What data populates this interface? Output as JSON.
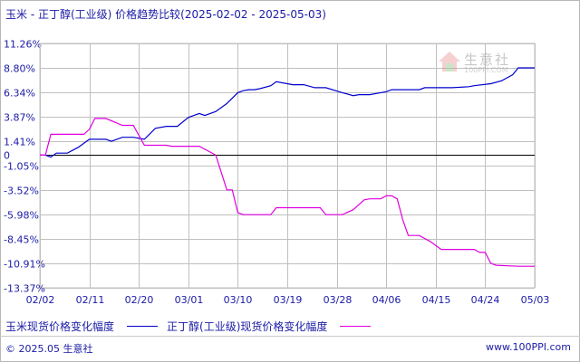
{
  "title": "玉米 - 正丁醇(工业级) 价格趋势比较(2025-02-02 - 2025-05-03)",
  "watermark": {
    "name": "生意社",
    "url": "100PPI.COM",
    "icon": "house-logo-icon"
  },
  "footer": {
    "left": "© 2025.05 生意社",
    "right": "www.100PPI.com"
  },
  "colors": {
    "series_1": "#0000cc",
    "series_2": "#e000e0",
    "grid": "#c0c0c0",
    "axis_text": "#1a1aa6"
  },
  "chart_data": {
    "type": "line",
    "x_ticks": [
      "02/02",
      "02/11",
      "02/20",
      "03/01",
      "03/10",
      "03/19",
      "03/28",
      "04/06",
      "04/15",
      "04/24",
      "05/03"
    ],
    "y_ticks": [
      "11.26%",
      "8.80%",
      "6.34%",
      "3.87%",
      "1.41%",
      "0",
      "-1.05%",
      "-3.52%",
      "-5.98%",
      "-8.45%",
      "-10.91%",
      "-13.37%"
    ],
    "y_tick_values": [
      11.26,
      8.8,
      6.34,
      3.87,
      1.41,
      0,
      -1.05,
      -3.52,
      -5.98,
      -8.45,
      -10.91,
      -13.37
    ],
    "ylim": [
      -13.37,
      11.26
    ],
    "x_range": [
      "2025-02-02",
      "2025-05-03"
    ],
    "grid": true,
    "legend_position": "bottom",
    "series": [
      {
        "name": "玉米现货价格变化幅度",
        "x": [
          "2025-02-02",
          "2025-02-03",
          "2025-02-04",
          "2025-02-05",
          "2025-02-07",
          "2025-02-09",
          "2025-02-11",
          "2025-02-14",
          "2025-02-15",
          "2025-02-17",
          "2025-02-19",
          "2025-02-21",
          "2025-02-23",
          "2025-02-25",
          "2025-02-27",
          "2025-03-01",
          "2025-03-03",
          "2025-03-04",
          "2025-03-06",
          "2025-03-08",
          "2025-03-10",
          "2025-03-11",
          "2025-03-12",
          "2025-03-13",
          "2025-03-14",
          "2025-03-16",
          "2025-03-17",
          "2025-03-19",
          "2025-03-20",
          "2025-03-22",
          "2025-03-24",
          "2025-03-26",
          "2025-03-29",
          "2025-03-31",
          "2025-04-01",
          "2025-04-02",
          "2025-04-03",
          "2025-04-06",
          "2025-04-07",
          "2025-04-09",
          "2025-04-12",
          "2025-04-13",
          "2025-04-16",
          "2025-04-18",
          "2025-04-21",
          "2025-04-22",
          "2025-04-25",
          "2025-04-27",
          "2025-04-28",
          "2025-04-29",
          "2025-04-30",
          "2025-05-03"
        ],
        "values": [
          0,
          0,
          -0.2,
          0.2,
          0.2,
          0.8,
          1.6,
          1.6,
          1.4,
          1.8,
          1.8,
          1.6,
          2.7,
          2.9,
          2.9,
          3.8,
          4.2,
          4.0,
          4.4,
          5.2,
          6.3,
          6.5,
          6.6,
          6.6,
          6.7,
          7.0,
          7.4,
          7.2,
          7.1,
          7.1,
          6.8,
          6.8,
          6.3,
          6.0,
          6.1,
          6.1,
          6.1,
          6.4,
          6.6,
          6.6,
          6.6,
          6.8,
          6.8,
          6.8,
          6.9,
          7.0,
          7.2,
          7.5,
          7.8,
          8.1,
          8.8,
          8.8
        ]
      },
      {
        "name": "正丁醇(工业级)现货价格变化幅度",
        "x": [
          "2025-02-02",
          "2025-02-03",
          "2025-02-04",
          "2025-02-05",
          "2025-02-07",
          "2025-02-10",
          "2025-02-11",
          "2025-02-12",
          "2025-02-14",
          "2025-02-17",
          "2025-02-19",
          "2025-02-21",
          "2025-02-23",
          "2025-02-25",
          "2025-02-26",
          "2025-02-28",
          "2025-03-01",
          "2025-03-03",
          "2025-03-06",
          "2025-03-08",
          "2025-03-09",
          "2025-03-10",
          "2025-03-11",
          "2025-03-13",
          "2025-03-16",
          "2025-03-17",
          "2025-03-19",
          "2025-03-22",
          "2025-03-25",
          "2025-03-26",
          "2025-03-29",
          "2025-03-31",
          "2025-04-02",
          "2025-04-03",
          "2025-04-05",
          "2025-04-06",
          "2025-04-07",
          "2025-04-08",
          "2025-04-09",
          "2025-04-10",
          "2025-04-12",
          "2025-04-14",
          "2025-04-16",
          "2025-04-19",
          "2025-04-22",
          "2025-04-23",
          "2025-04-24",
          "2025-04-25",
          "2025-04-26",
          "2025-04-30",
          "2025-05-03"
        ],
        "values": [
          0,
          0,
          2.1,
          2.1,
          2.1,
          2.1,
          2.6,
          3.7,
          3.7,
          3.0,
          3.0,
          1.0,
          1.0,
          1.0,
          0.9,
          0.9,
          0.9,
          0.9,
          0,
          -3.5,
          -3.5,
          -5.8,
          -6.0,
          -6.0,
          -6.0,
          -5.3,
          -5.3,
          -5.3,
          -5.3,
          -6.0,
          -6.0,
          -5.5,
          -4.5,
          -4.4,
          -4.4,
          -4.1,
          -4.1,
          -4.4,
          -6.5,
          -8.1,
          -8.1,
          -8.7,
          -9.5,
          -9.5,
          -9.5,
          -9.8,
          -9.8,
          -10.9,
          -11.1,
          -11.2,
          -11.2
        ]
      }
    ]
  }
}
